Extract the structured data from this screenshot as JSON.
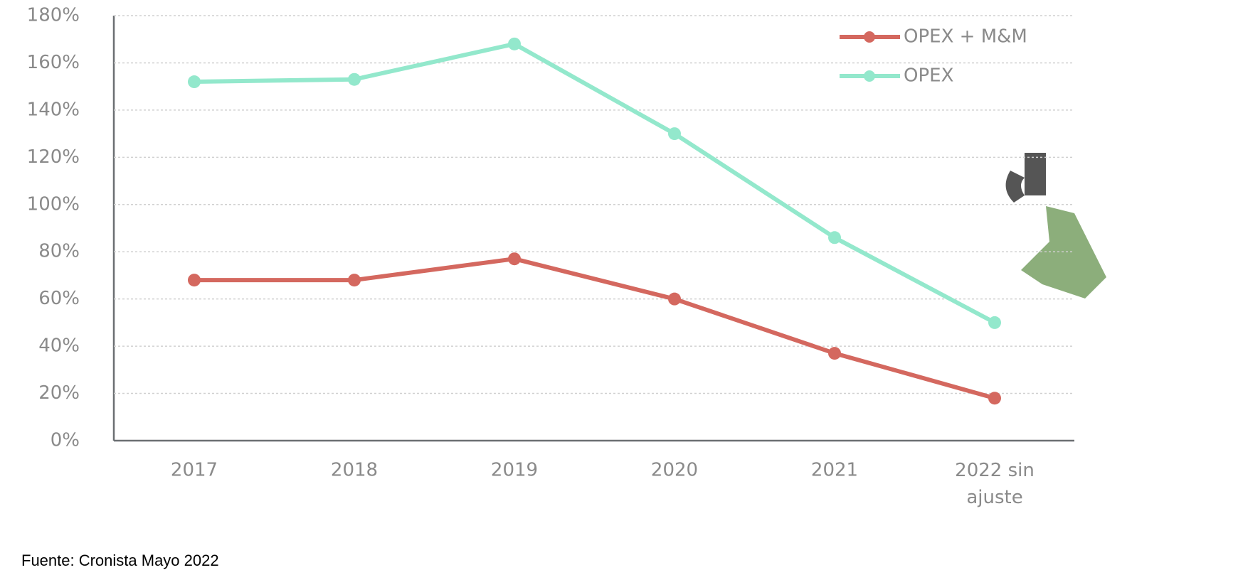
{
  "chart_data": {
    "type": "line",
    "categories": [
      "2017",
      "2018",
      "2019",
      "2020",
      "2021",
      "2022 sin ajuste"
    ],
    "series": [
      {
        "name": "OPEX + M&M",
        "color": "#d4685f",
        "values": [
          68,
          68,
          77,
          60,
          37,
          18
        ]
      },
      {
        "name": "OPEX",
        "color": "#93e8cc",
        "values": [
          152,
          153,
          168,
          130,
          86,
          50
        ]
      }
    ],
    "ylim": [
      0,
      180
    ],
    "yticks": [
      {
        "value": 0,
        "label": "0%"
      },
      {
        "value": 20,
        "label": "20%"
      },
      {
        "value": 40,
        "label": "40%"
      },
      {
        "value": 60,
        "label": "60%"
      },
      {
        "value": 80,
        "label": "80%"
      },
      {
        "value": 100,
        "label": "100%"
      },
      {
        "value": 120,
        "label": "120%"
      },
      {
        "value": 140,
        "label": "140%"
      },
      {
        "value": 160,
        "label": "160%"
      },
      {
        "value": 180,
        "label": "180%"
      }
    ],
    "grid": true,
    "legend": "top-right",
    "source": "Fuente: Cronista Mayo 2022"
  }
}
